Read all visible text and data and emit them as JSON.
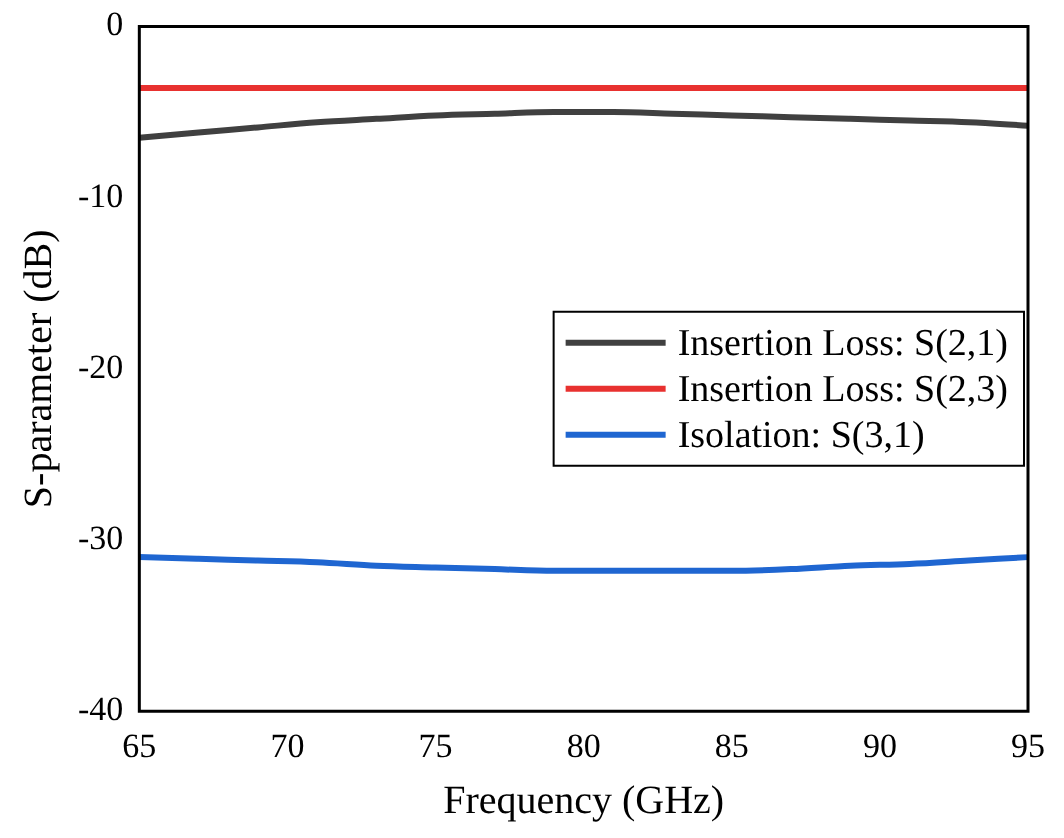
{
  "chart_data": {
    "type": "line",
    "xlabel": "Frequency (GHz)",
    "ylabel": "S-parameter (dB)",
    "x": [
      65,
      67,
      69,
      71,
      73,
      75,
      77,
      79,
      81,
      83,
      85,
      87,
      89,
      91,
      93,
      95
    ],
    "series": [
      {
        "name": "Insertion Loss: S(2,1)",
        "color": "#404040",
        "values": [
          -6.5,
          -6.2,
          -5.9,
          -5.6,
          -5.4,
          -5.2,
          -5.1,
          -5.0,
          -5.0,
          -5.1,
          -5.2,
          -5.3,
          -5.4,
          -5.5,
          -5.6,
          -5.8
        ]
      },
      {
        "name": "Insertion Loss: S(2,3)",
        "color": "#e8312f",
        "values": [
          -3.6,
          -3.6,
          -3.6,
          -3.6,
          -3.6,
          -3.6,
          -3.6,
          -3.6,
          -3.6,
          -3.6,
          -3.6,
          -3.6,
          -3.6,
          -3.6,
          -3.6,
          -3.6
        ]
      },
      {
        "name": "Isolation: S(3,1)",
        "color": "#1f66d1",
        "values": [
          -31.0,
          -31.1,
          -31.2,
          -31.3,
          -31.5,
          -31.6,
          -31.7,
          -31.8,
          -31.8,
          -31.8,
          -31.8,
          -31.7,
          -31.5,
          -31.4,
          -31.2,
          -31.0
        ]
      }
    ],
    "xlim": [
      65,
      95
    ],
    "xticks": [
      65,
      70,
      75,
      80,
      85,
      90,
      95
    ],
    "ylim": [
      -40,
      0
    ],
    "yticks": [
      -40,
      -30,
      -20,
      -10,
      0
    ],
    "grid": false,
    "legend": "right",
    "marker": "none",
    "line_style": "solid"
  }
}
